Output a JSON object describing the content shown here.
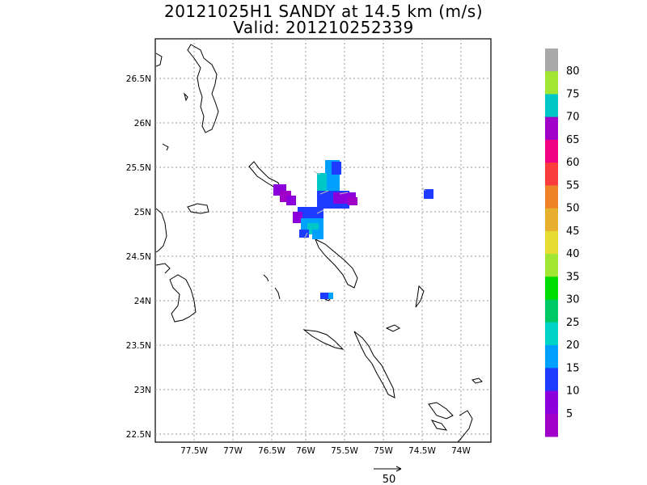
{
  "header": {
    "title_line1": "20121025H1 SANDY at 14.5 km (m/s)",
    "title_line2": "Valid: 201210252339"
  },
  "map": {
    "lon_labels": [
      "77.5W",
      "77W",
      "76.5W",
      "76W",
      "75.5W",
      "75W",
      "74.5W",
      "74W"
    ],
    "lat_labels": [
      "26.5N",
      "26N",
      "25.5N",
      "25N",
      "24.5N",
      "24N",
      "23.5N",
      "23N",
      "22.5N"
    ],
    "grid": "dotted",
    "coastline_color": "#000000"
  },
  "colorbar": {
    "labels": [
      "80",
      "75",
      "70",
      "65",
      "60",
      "55",
      "50",
      "45",
      "40",
      "35",
      "30",
      "25",
      "20",
      "15",
      "10",
      "5"
    ],
    "colors": [
      "#a9a9a9",
      "#a0e632",
      "#00c8c8",
      "#a000c8",
      "#f00082",
      "#fa3c3c",
      "#f08228",
      "#e6af2d",
      "#e6dc32",
      "#a0e632",
      "#00dc00",
      "#00c864",
      "#00d2c8",
      "#00a0ff",
      "#1e3cff",
      "#8c00dc",
      "#a000c8"
    ]
  },
  "reference_vector": {
    "label": "50"
  }
}
